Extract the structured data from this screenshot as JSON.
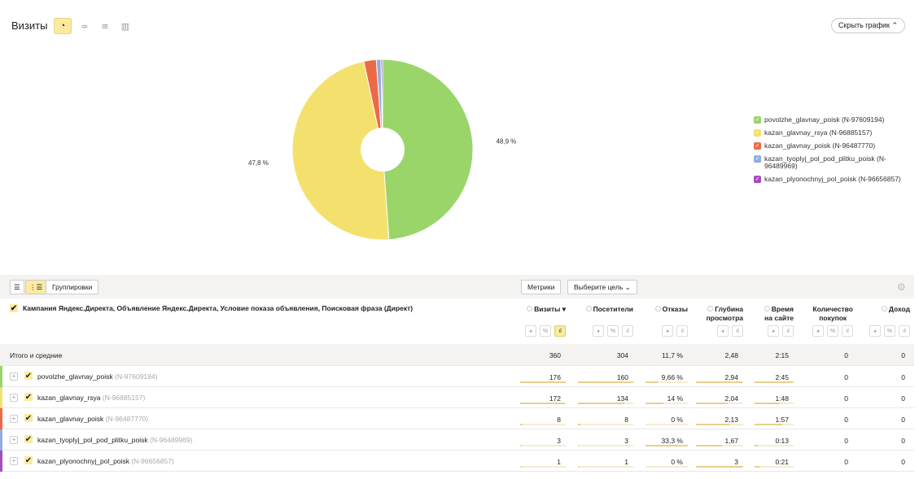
{
  "header": {
    "title": "Визиты",
    "hide_chart": "Скрыть график",
    "chart_types": [
      {
        "icon": "pie-icon",
        "glyph": "◔",
        "active": true
      },
      {
        "icon": "line-icon",
        "glyph": "≃",
        "active": false
      },
      {
        "icon": "area-icon",
        "glyph": "≋",
        "active": false
      },
      {
        "icon": "bar-icon",
        "glyph": "▥",
        "active": false
      }
    ]
  },
  "chart_data": {
    "type": "pie",
    "donut": true,
    "slices": [
      {
        "name": "povolzhe_glavnay_poisk (N-97609194)",
        "value": 176,
        "percent": 48.9,
        "label": "48,9 %",
        "color": "#9ad56a"
      },
      {
        "name": "kazan_glavnay_rsya (N-96885157)",
        "value": 172,
        "percent": 47.8,
        "label": "47,8 %",
        "color": "#f4e06c"
      },
      {
        "name": "kazan_glavnay_poisk (N-96487770)",
        "value": 8,
        "percent": 2.2,
        "color": "#ed6a47"
      },
      {
        "name": "kazan_tyoplyj_pol_pod_plitku_poisk (N-96489969)",
        "value": 3,
        "percent": 0.83,
        "color": "#92acdf"
      },
      {
        "name": "kazan_plyonochnyj_pol_poisk (N-96656857)",
        "value": 1,
        "percent": 0.28,
        "color": "#a54cc1"
      }
    ],
    "legend_position": "right"
  },
  "toolbar": {
    "groupings": "Группировки",
    "metrics": "Метрики",
    "goal": "Выберите цель"
  },
  "table": {
    "dimension_title": "Кампания Яндекс.Директа, Объявление Яндекс.Директа, Условие показа объявления, Поисковая фраза (Директ)",
    "columns": [
      {
        "label": "Визиты ▾",
        "l2": "",
        "icons": [
          "pie",
          "%",
          "bar"
        ],
        "active": 2
      },
      {
        "label": "Посетители",
        "l2": "",
        "icons": [
          "pie",
          "%",
          "bar"
        ],
        "active": -1
      },
      {
        "label": "Отказы",
        "l2": "",
        "icons": [
          "pie",
          "bar"
        ],
        "active": -1
      },
      {
        "label": "Глубина",
        "l2": "просмотра",
        "icons": [
          "pie",
          "bar"
        ],
        "active": -1
      },
      {
        "label": "Время",
        "l2": "на сайте",
        "icons": [
          "pie",
          "bar"
        ],
        "active": -1
      },
      {
        "label": "Количество",
        "l2": "покупок",
        "icons": [
          "pie",
          "%",
          "bar"
        ],
        "active": -1,
        "noq": true
      },
      {
        "label": "Доход",
        "l2": "",
        "icons": [
          "pie",
          "%",
          "bar"
        ],
        "active": -1
      }
    ],
    "total": {
      "label": "Итого и средние",
      "values": [
        "360",
        "304",
        "11,7 %",
        "2,48",
        "2:15",
        "0",
        "0"
      ]
    },
    "rows": [
      {
        "name": "povolzhe_glavnay_poisk",
        "id": "(N-97609194)",
        "color": "#9ad56a",
        "values": [
          "176",
          "160",
          "9,66 %",
          "2,94",
          "2:45",
          "0",
          "0"
        ],
        "bars": [
          1,
          1,
          0.29,
          0.98,
          1
        ]
      },
      {
        "name": "kazan_glavnay_rsya",
        "id": "(N-96885157)",
        "color": "#f4e06c",
        "values": [
          "172",
          "134",
          "14 %",
          "2,04",
          "1:48",
          "0",
          "0"
        ],
        "bars": [
          0.98,
          0.84,
          0.42,
          0.68,
          0.65
        ]
      },
      {
        "name": "kazan_glavnay_poisk",
        "id": "(N-96487770)",
        "color": "#ed6a47",
        "values": [
          "8",
          "8",
          "0 %",
          "2,13",
          "1:57",
          "0",
          "0"
        ],
        "bars": [
          0.045,
          0.05,
          0,
          0.71,
          0.71
        ]
      },
      {
        "name": "kazan_tyoplyj_pol_pod_plitku_poisk",
        "id": "(N-96489969)",
        "color": "#92acdf",
        "values": [
          "3",
          "3",
          "33,3 %",
          "1,67",
          "0:13",
          "0",
          "0"
        ],
        "bars": [
          0.017,
          0.02,
          1,
          0.56,
          0.08
        ]
      },
      {
        "name": "kazan_plyonochnyj_pol_poisk",
        "id": "(N-96656857)",
        "color": "#a54cc1",
        "values": [
          "1",
          "1",
          "0 %",
          "3",
          "0:21",
          "0",
          "0"
        ],
        "bars": [
          0.006,
          0.006,
          0,
          1,
          0.13
        ]
      }
    ]
  }
}
